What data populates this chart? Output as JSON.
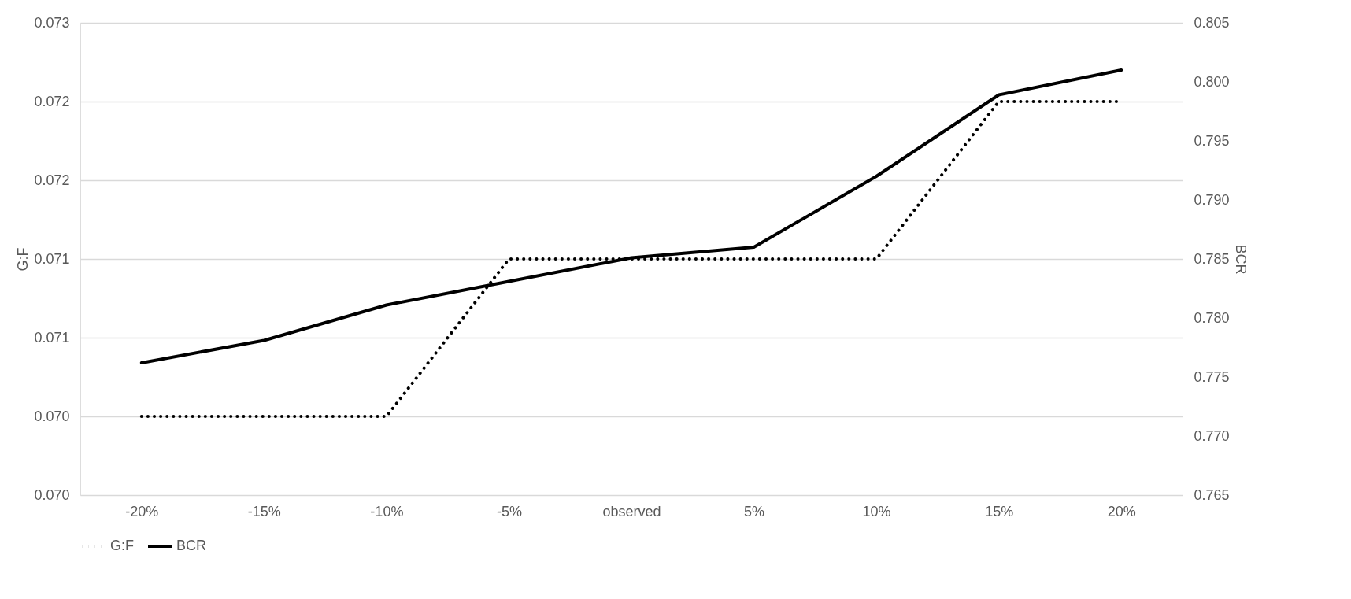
{
  "chart_data": {
    "type": "line",
    "ylabel": "G:F",
    "y2label": "BCR",
    "categories": [
      "-20%",
      "-15%",
      "-10%",
      "-5%",
      "observed",
      "5%",
      "10%",
      "15%",
      "20%"
    ],
    "series": [
      {
        "name": "G:F",
        "color": "#000000",
        "line_style": "dotted",
        "values": [
          0.0705,
          0.0705,
          0.0705,
          0.0715,
          0.0715,
          0.0715,
          0.0715,
          0.0725,
          0.0725
        ]
      },
      {
        "name": "BCR",
        "color": "#000000",
        "line_style": "solid",
        "axis": "y2",
        "values": [
          0.7762,
          0.7781,
          0.7811,
          0.7831,
          0.7851,
          0.786,
          0.792,
          0.7989,
          0.801
        ]
      }
    ],
    "ylim": [
      0.07,
      0.073
    ],
    "yticks": [
      {
        "value": 0.07,
        "label": "0.070"
      },
      {
        "value": 0.0705,
        "label": "0.070"
      },
      {
        "value": 0.071,
        "label": "0.071"
      },
      {
        "value": 0.0715,
        "label": "0.071"
      },
      {
        "value": 0.072,
        "label": "0.072"
      },
      {
        "value": 0.0725,
        "label": "0.072"
      },
      {
        "value": 0.073,
        "label": "0.073"
      }
    ],
    "y2lim": [
      0.765,
      0.805
    ],
    "y2ticks": [
      0.765,
      {
        "value": 0.77,
        "label": "0.770"
      },
      0.775,
      {
        "value": 0.78,
        "label": "0.780"
      },
      0.785,
      {
        "value": 0.79,
        "label": "0.790"
      },
      0.795,
      {
        "value": 0.8,
        "label": "0.800"
      },
      0.805
    ],
    "grid": "y",
    "legend": "bottom"
  }
}
